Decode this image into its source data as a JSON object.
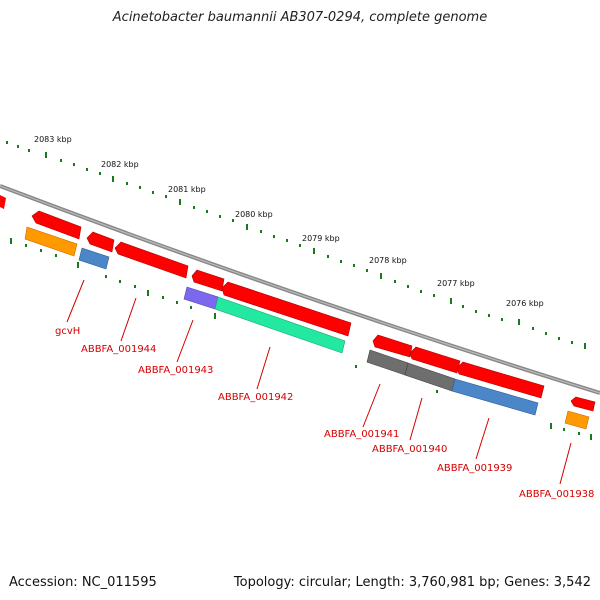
{
  "title": "Acinetobacter baumannii AB307-0294, complete genome",
  "footer": {
    "accession": "Accession: NC_011595",
    "summary": "Topology: circular; Length: 3,760,981 bp; Genes: 3,542"
  },
  "scale_labels": [
    "2083 kbp",
    "2082 kbp",
    "2081 kbp",
    "2080 kbp",
    "2079 kbp",
    "2078 kbp",
    "2077 kbp",
    "2076 kbp"
  ],
  "gene_labels": [
    "gcvH",
    "ABBFA_001944",
    "ABBFA_001943",
    "ABBFA_001942",
    "ABBFA_001941",
    "ABBFA_001940",
    "ABBFA_001939",
    "ABBFA_001938"
  ],
  "colors": {
    "backbone": "#888888",
    "ruler": "#1a7a1a",
    "cds": "#ff0000",
    "orange": "#ff9900",
    "blue": "#4a86c8",
    "purple": "#7b68ee",
    "teal": "#22e8a0",
    "gray": "#6e6e6e",
    "label": "#d40000"
  }
}
